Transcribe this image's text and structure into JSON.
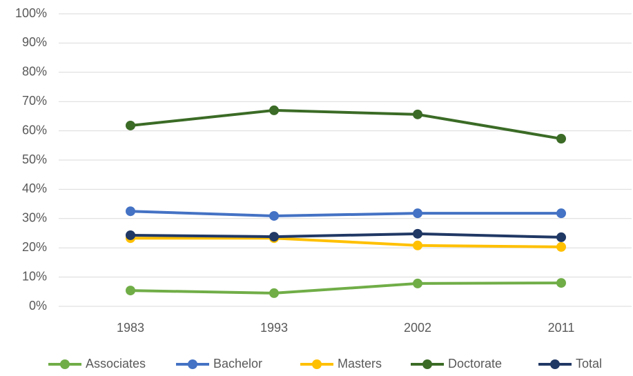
{
  "chart_data": {
    "type": "line",
    "categories": [
      "1983",
      "1993",
      "2002",
      "2011"
    ],
    "series": [
      {
        "name": "Associates",
        "color": "#70ad47",
        "values": [
          5.4,
          4.5,
          7.8,
          8.0
        ]
      },
      {
        "name": "Bachelor",
        "color": "#4472c4",
        "values": [
          32.5,
          30.9,
          31.8,
          31.8
        ]
      },
      {
        "name": "Masters",
        "color": "#ffc000",
        "values": [
          23.3,
          23.3,
          20.8,
          20.3
        ]
      },
      {
        "name": "Doctorate",
        "color": "#3b6b26",
        "values": [
          61.8,
          67.0,
          65.6,
          57.3
        ]
      },
      {
        "name": "Total",
        "color": "#203864",
        "values": [
          24.3,
          23.8,
          24.8,
          23.6
        ]
      }
    ],
    "ylim": [
      0,
      100
    ],
    "yticks": [
      {
        "value": 0,
        "label": "0%"
      },
      {
        "value": 10,
        "label": "10%"
      },
      {
        "value": 20,
        "label": "20%"
      },
      {
        "value": 30,
        "label": "30%"
      },
      {
        "value": 40,
        "label": "40%"
      },
      {
        "value": 50,
        "label": "50%"
      },
      {
        "value": 60,
        "label": "60%"
      },
      {
        "value": 70,
        "label": "70%"
      },
      {
        "value": 80,
        "label": "80%"
      },
      {
        "value": 90,
        "label": "90%"
      },
      {
        "value": 100,
        "label": "100%"
      }
    ],
    "grid": true,
    "legend": "bottom"
  }
}
